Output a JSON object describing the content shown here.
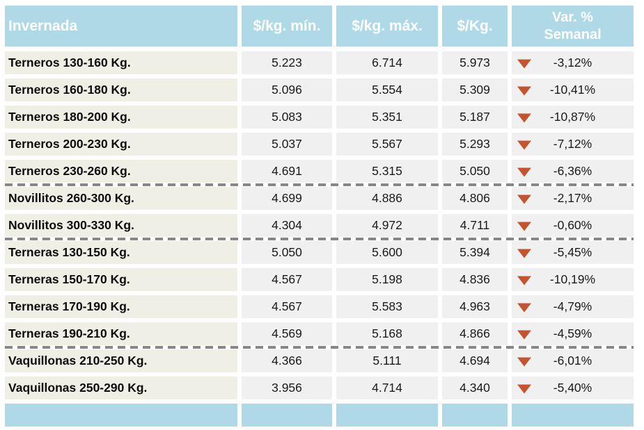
{
  "chart_data": {
    "type": "table",
    "title": "Invernada",
    "columns": [
      "Invernada",
      "$/kg. mín.",
      "$/kg. máx.",
      "$/Kg.",
      "Var. % Semanal"
    ],
    "header": {
      "category": "Invernada",
      "min": "$/kg. mín.",
      "max": "$/kg. máx.",
      "avg": "$/Kg.",
      "var_line1": "Var. %",
      "var_line2": "Semanal"
    },
    "rows": [
      {
        "category": "Terneros 130-160 Kg.",
        "min": "5.223",
        "max": "6.714",
        "avg": "5.973",
        "var_pct": "-3,12%",
        "direction": "down",
        "separator_after": false
      },
      {
        "category": "Terneros 160-180 Kg.",
        "min": "5.096",
        "max": "5.554",
        "avg": "5.309",
        "var_pct": "-10,41%",
        "direction": "down",
        "separator_after": false
      },
      {
        "category": "Terneros 180-200 Kg.",
        "min": "5.083",
        "max": "5.351",
        "avg": "5.187",
        "var_pct": "-10,87%",
        "direction": "down",
        "separator_after": false
      },
      {
        "category": "Terneros 200-230 Kg.",
        "min": "5.037",
        "max": "5.567",
        "avg": "5.293",
        "var_pct": "-7,12%",
        "direction": "down",
        "separator_after": false
      },
      {
        "category": "Terneros 230-260 Kg.",
        "min": "4.691",
        "max": "5.315",
        "avg": "5.050",
        "var_pct": "-6,36%",
        "direction": "down",
        "separator_after": true
      },
      {
        "category": "Novillitos 260-300 Kg.",
        "min": "4.699",
        "max": "4.886",
        "avg": "4.806",
        "var_pct": "-2,17%",
        "direction": "down",
        "separator_after": false
      },
      {
        "category": "Novillitos 300-330 Kg.",
        "min": "4.304",
        "max": "4.972",
        "avg": "4.711",
        "var_pct": "-0,60%",
        "direction": "down",
        "separator_after": true
      },
      {
        "category": "Terneras 130-150 Kg.",
        "min": "5.050",
        "max": "5.600",
        "avg": "5.394",
        "var_pct": "-5,45%",
        "direction": "down",
        "separator_after": false
      },
      {
        "category": "Terneras 150-170 Kg.",
        "min": "4.567",
        "max": "5.198",
        "avg": "4.836",
        "var_pct": "-10,19%",
        "direction": "down",
        "separator_after": false
      },
      {
        "category": "Terneras 170-190 Kg.",
        "min": "4.567",
        "max": "5.583",
        "avg": "4.963",
        "var_pct": "-4,79%",
        "direction": "down",
        "separator_after": false
      },
      {
        "category": "Terneras 190-210 Kg.",
        "min": "4.569",
        "max": "5.168",
        "avg": "4.866",
        "var_pct": "-4,59%",
        "direction": "down",
        "separator_after": true
      },
      {
        "category": "Vaquillonas 210-250 Kg.",
        "min": "4.366",
        "max": "5.111",
        "avg": "4.694",
        "var_pct": "-6,01%",
        "direction": "down",
        "separator_after": false
      },
      {
        "category": "Vaquillonas 250-290 Kg.",
        "min": "3.956",
        "max": "4.714",
        "avg": "4.340",
        "var_pct": "-5,40%",
        "direction": "down",
        "separator_after": false
      }
    ],
    "footer_row": "empty",
    "legend": "none",
    "colors": {
      "header_bg": "#AFD9E7",
      "header_text": "#FFFFFF",
      "category_cell_bg": "#F0EFE6",
      "value_cell_bg": "#F0F0F0",
      "body_text": "#1A1A1A",
      "down_arrow": "#C4532F",
      "group_separator": "#878787"
    }
  }
}
